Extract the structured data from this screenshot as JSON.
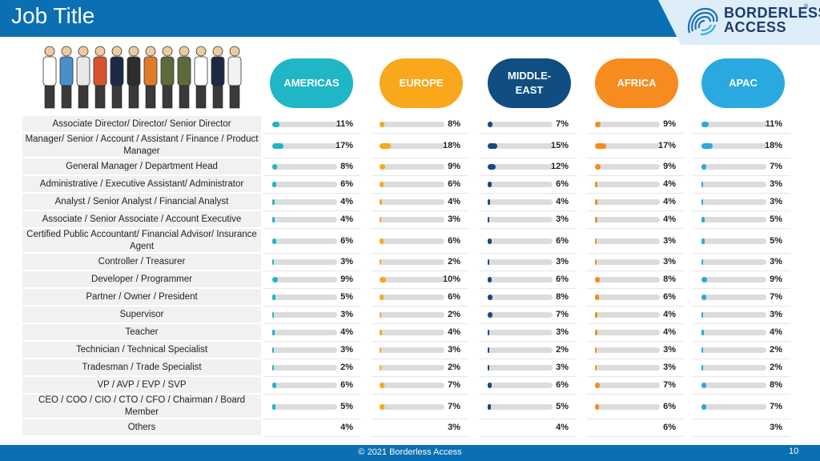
{
  "header": {
    "title": "Job Title"
  },
  "logo": {
    "line1": "BORDERLESS",
    "line2": "ACCESS",
    "reg": "®"
  },
  "regions": [
    {
      "name": "AMERICAS",
      "color": "#1fb6c5"
    },
    {
      "name": "EUROPE",
      "color": "#f9a71b"
    },
    {
      "name": "MIDDLE-\nEAST",
      "color": "#0f4d82"
    },
    {
      "name": "AFRICA",
      "color": "#f68b1f"
    },
    {
      "name": "APAC",
      "color": "#2aa9e0"
    }
  ],
  "rows": [
    {
      "label": "Associate Director/ Director/ Senior Director",
      "values": [
        "11%",
        "8%",
        "7%",
        "9%",
        "11%"
      ]
    },
    {
      "label": "Manager/ Senior / Account / Assistant / Finance / Product Manager",
      "values": [
        "17%",
        "18%",
        "15%",
        "17%",
        "18%"
      ]
    },
    {
      "label": "General Manager / Department Head",
      "values": [
        "8%",
        "9%",
        "12%",
        "9%",
        "7%"
      ]
    },
    {
      "label": "Administrative / Executive Assistant/ Administrator",
      "values": [
        "6%",
        "6%",
        "6%",
        "4%",
        "3%"
      ]
    },
    {
      "label": "Analyst / Senior Analyst / Financial Analyst",
      "values": [
        "4%",
        "4%",
        "4%",
        "4%",
        "3%"
      ]
    },
    {
      "label": "Associate / Senior Associate / Account Executive",
      "values": [
        "4%",
        "3%",
        "3%",
        "4%",
        "5%"
      ]
    },
    {
      "label": "Certified Public Accountant/ Financial Advisor/ Insurance Agent",
      "values": [
        "6%",
        "6%",
        "6%",
        "3%",
        "5%"
      ]
    },
    {
      "label": "Controller / Treasurer",
      "values": [
        "3%",
        "2%",
        "3%",
        "3%",
        "3%"
      ]
    },
    {
      "label": "Developer / Programmer",
      "values": [
        "9%",
        "10%",
        "6%",
        "8%",
        "9%"
      ]
    },
    {
      "label": "Partner / Owner / President",
      "values": [
        "5%",
        "6%",
        "8%",
        "6%",
        "7%"
      ]
    },
    {
      "label": "Supervisor",
      "values": [
        "3%",
        "2%",
        "7%",
        "4%",
        "3%"
      ]
    },
    {
      "label": "Teacher",
      "values": [
        "4%",
        "4%",
        "3%",
        "4%",
        "4%"
      ]
    },
    {
      "label": "Technician / Technical Specialist",
      "values": [
        "3%",
        "3%",
        "2%",
        "3%",
        "2%"
      ]
    },
    {
      "label": "Tradesman / Trade Specialist",
      "values": [
        "2%",
        "2%",
        "3%",
        "3%",
        "2%"
      ]
    },
    {
      "label": "VP / AVP / EVP / SVP",
      "values": [
        "6%",
        "7%",
        "6%",
        "7%",
        "8%"
      ]
    },
    {
      "label": "CEO / COO / CIO / CTO / CFO / Chairman / Board Member",
      "values": [
        "5%",
        "7%",
        "5%",
        "6%",
        "7%"
      ]
    },
    {
      "label": "Others",
      "values": [
        "4%",
        "3%",
        "4%",
        "6%",
        "3%"
      ]
    }
  ],
  "footer": {
    "copyright": "© 2021 Borderless Access",
    "page": "10"
  },
  "illustration": {
    "icon": "professionals-group-icon"
  }
}
